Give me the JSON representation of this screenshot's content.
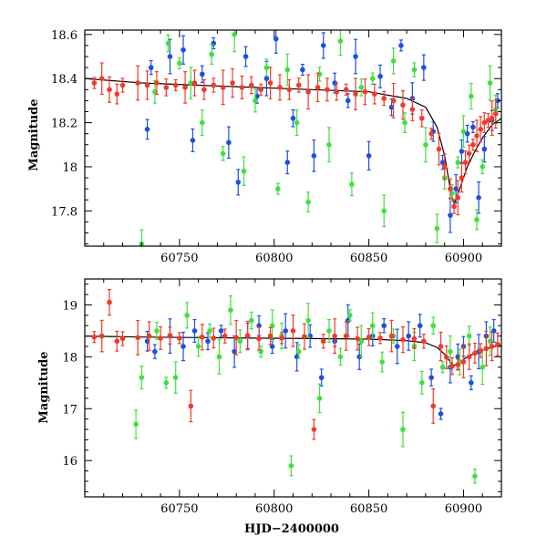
{
  "colors": {
    "series_blue": "#1f4fe0",
    "series_green": "#3fe03f",
    "series_red": "#f03a2a",
    "model": "#000000"
  },
  "chart_data": [
    {
      "type": "scatter",
      "panel": "top",
      "xlabel": "",
      "ylabel": "Magnitude",
      "xlim": [
        60700,
        60920
      ],
      "ylim": [
        18.62,
        17.64
      ],
      "y_inverted": true,
      "xticks": [
        60750,
        60800,
        60850,
        60900
      ],
      "yticks": [
        17.8,
        18,
        18.2,
        18.4,
        18.6
      ],
      "ytick_labels": [
        "17.8",
        "18",
        "18.2",
        "18.4",
        "18.6"
      ],
      "error_bars": true,
      "grid": false,
      "legend": "none",
      "series": [
        {
          "color": "blue",
          "marker": "circle",
          "x": [
            60733,
            60735,
            60745,
            60752,
            60757,
            60762,
            60768,
            60776,
            60781,
            60785,
            60791,
            60796,
            60801,
            60807,
            60810,
            60815,
            60821,
            60826,
            60832,
            60839,
            60843,
            60850,
            60856,
            60862,
            60867,
            60873,
            60879,
            60884,
            60889,
            60893,
            60896,
            60899,
            60902,
            60905,
            60908,
            60911,
            60915,
            60918
          ],
          "y": [
            18.17,
            18.45,
            18.5,
            18.53,
            18.12,
            18.42,
            18.56,
            18.11,
            17.93,
            18.5,
            18.32,
            18.4,
            18.58,
            18.02,
            18.22,
            18.44,
            18.05,
            18.55,
            18.38,
            18.3,
            18.5,
            18.05,
            18.41,
            18.27,
            18.55,
            18.31,
            18.45,
            18.16,
            18.02,
            17.78,
            17.9,
            18.07,
            18.15,
            18.18,
            17.86,
            18.08,
            18.21,
            18.3
          ]
        },
        {
          "color": "green",
          "marker": "circle",
          "x": [
            60730,
            60737,
            60744,
            60750,
            60756,
            60762,
            60767,
            60773,
            60779,
            60784,
            60790,
            60796,
            60802,
            60807,
            60812,
            60818,
            60824,
            60829,
            60835,
            60841,
            60846,
            60852,
            60858,
            60863,
            60869,
            60874,
            60880,
            60886,
            60890,
            60894,
            60897,
            60900,
            60904,
            60907,
            60910,
            60914,
            60917
          ],
          "y": [
            17.65,
            18.34,
            18.56,
            18.47,
            18.38,
            18.2,
            18.51,
            18.06,
            18.6,
            17.98,
            18.3,
            18.45,
            17.9,
            18.44,
            18.2,
            17.84,
            18.42,
            18.1,
            18.57,
            17.92,
            18.36,
            18.4,
            17.8,
            18.48,
            18.2,
            18.44,
            18.1,
            17.72,
            17.95,
            17.88,
            18.02,
            18.16,
            18.32,
            17.76,
            18.0,
            18.38,
            18.26
          ]
        },
        {
          "color": "red",
          "marker": "circle",
          "x": [
            60705,
            60709,
            60713,
            60717,
            60720,
            60728,
            60733,
            60738,
            60743,
            60748,
            60753,
            60758,
            60763,
            60768,
            60773,
            60778,
            60783,
            60788,
            60793,
            60798,
            60803,
            60808,
            60813,
            60818,
            60823,
            60828,
            60833,
            60838,
            60843,
            60848,
            60853,
            60858,
            60863,
            60868,
            60873,
            60878,
            60883,
            60887,
            60890,
            60893,
            60895,
            60897,
            60899,
            60901,
            60903,
            60905,
            60907,
            60909,
            60911,
            60913,
            60915,
            60917
          ],
          "y": [
            18.38,
            18.4,
            18.35,
            18.33,
            18.37,
            18.38,
            18.37,
            18.38,
            18.36,
            18.37,
            18.36,
            18.38,
            18.35,
            18.37,
            18.36,
            18.38,
            18.36,
            18.37,
            18.35,
            18.38,
            18.36,
            18.35,
            18.37,
            18.34,
            18.36,
            18.35,
            18.34,
            18.35,
            18.33,
            18.34,
            18.33,
            18.31,
            18.3,
            18.28,
            18.26,
            18.22,
            18.15,
            18.08,
            18.0,
            17.9,
            17.82,
            17.86,
            17.95,
            18.02,
            18.06,
            18.1,
            18.14,
            18.17,
            18.2,
            18.21,
            18.22,
            18.24
          ]
        }
      ],
      "model_line": {
        "x": [
          60700,
          60730,
          60760,
          60790,
          60820,
          60850,
          60870,
          60880,
          60886,
          60890,
          60893,
          60895,
          60898,
          60902,
          60906,
          60910,
          60915,
          60920
        ],
        "y": [
          18.4,
          18.38,
          18.37,
          18.36,
          18.35,
          18.34,
          18.31,
          18.27,
          18.18,
          18.05,
          17.9,
          17.83,
          17.9,
          18.0,
          18.07,
          18.13,
          18.19,
          18.22
        ]
      }
    },
    {
      "type": "scatter",
      "panel": "bottom",
      "xlabel": "HJD−2400000",
      "ylabel": "Magnitude",
      "xlim": [
        60700,
        60920
      ],
      "ylim": [
        19.5,
        15.3
      ],
      "y_inverted": true,
      "xticks": [
        60750,
        60800,
        60850,
        60900
      ],
      "yticks": [
        16,
        17,
        18,
        19
      ],
      "ytick_labels": [
        "16",
        "17",
        "18",
        "19"
      ],
      "error_bars": true,
      "grid": false,
      "legend": "none",
      "series": [
        {
          "color": "blue",
          "marker": "circle",
          "x": [
            60733,
            60737,
            60745,
            60752,
            60758,
            60765,
            60772,
            60779,
            60786,
            60792,
            60799,
            60806,
            60812,
            60819,
            60825,
            60832,
            60839,
            60845,
            60852,
            60858,
            60865,
            60871,
            60877,
            60883,
            60888,
            60893,
            60897,
            60900,
            60904,
            60908,
            60912,
            60916
          ],
          "y": [
            18.3,
            18.1,
            18.4,
            18.2,
            18.5,
            18.3,
            18.5,
            18.1,
            18.4,
            18.6,
            18.2,
            18.5,
            18.0,
            18.4,
            17.6,
            18.3,
            18.7,
            18.0,
            18.4,
            18.6,
            18.2,
            18.4,
            18.6,
            17.6,
            16.9,
            17.8,
            18.0,
            18.2,
            17.5,
            18.1,
            18.4,
            18.5
          ]
        },
        {
          "color": "green",
          "marker": "circle",
          "x": [
            60727,
            60730,
            60738,
            60743,
            60748,
            60754,
            60760,
            60766,
            60771,
            60777,
            60782,
            60788,
            60793,
            60799,
            60804,
            60809,
            60813,
            60818,
            60824,
            60829,
            60835,
            60840,
            60846,
            60852,
            60857,
            60863,
            60868,
            60874,
            60878,
            60884,
            60889,
            60893,
            60898,
            60903,
            60906,
            60910,
            60914
          ],
          "y": [
            16.7,
            17.6,
            18.5,
            17.5,
            17.6,
            18.8,
            18.2,
            18.5,
            18.0,
            18.9,
            18.3,
            18.7,
            18.1,
            18.6,
            18.4,
            15.9,
            18.1,
            18.7,
            17.2,
            18.5,
            18.0,
            18.8,
            18.3,
            18.6,
            17.9,
            18.4,
            16.6,
            18.2,
            17.5,
            18.6,
            17.8,
            18.1,
            17.9,
            18.4,
            15.7,
            17.8,
            18.3
          ]
        },
        {
          "color": "red",
          "marker": "circle",
          "x": [
            60705,
            60709,
            60713,
            60717,
            60720,
            60728,
            60734,
            60740,
            60745,
            60750,
            60756,
            60762,
            60768,
            60774,
            60780,
            60786,
            60792,
            60798,
            60804,
            60810,
            60816,
            60821,
            60826,
            60832,
            60838,
            60844,
            60850,
            60856,
            60862,
            60868,
            60874,
            60879,
            60884,
            60888,
            60891,
            60894,
            60897,
            60900,
            60903,
            60906,
            60909,
            60912,
            60915,
            60918
          ],
          "y": [
            18.38,
            18.4,
            19.05,
            18.3,
            18.35,
            18.37,
            18.4,
            18.36,
            18.41,
            18.36,
            17.05,
            18.38,
            18.36,
            18.4,
            18.37,
            18.41,
            18.35,
            18.4,
            18.36,
            18.5,
            18.39,
            16.6,
            18.3,
            18.4,
            18.4,
            18.35,
            18.38,
            18.36,
            18.4,
            18.33,
            18.35,
            18.3,
            17.05,
            18.2,
            17.99,
            17.82,
            17.85,
            17.9,
            18.0,
            18.07,
            18.12,
            18.16,
            18.2,
            18.24
          ]
        }
      ],
      "model_line": {
        "x": [
          60700,
          60730,
          60760,
          60790,
          60820,
          60850,
          60870,
          60880,
          60886,
          60890,
          60893,
          60895,
          60898,
          60902,
          60906,
          60910,
          60915,
          60920
        ],
        "y": [
          18.4,
          18.38,
          18.37,
          18.36,
          18.35,
          18.34,
          18.31,
          18.27,
          18.18,
          18.05,
          17.9,
          17.83,
          17.9,
          18.0,
          18.07,
          18.13,
          18.19,
          18.22
        ]
      }
    }
  ]
}
